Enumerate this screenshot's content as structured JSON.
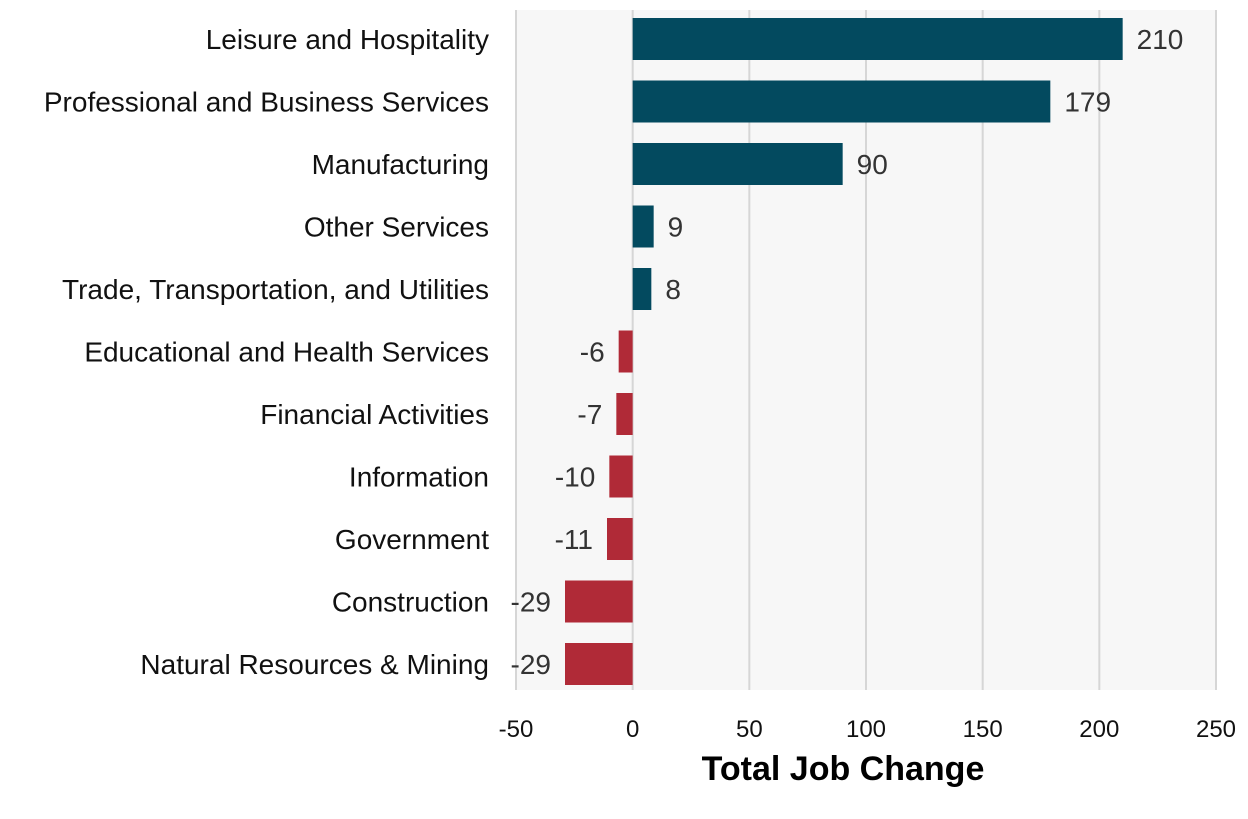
{
  "chart_data": {
    "type": "bar",
    "orientation": "horizontal",
    "categories": [
      "Leisure and Hospitality",
      "Professional and Business Services",
      "Manufacturing",
      "Other Services",
      "Trade, Transportation, and Utilities",
      "Educational and Health Services",
      "Financial Activities",
      "Information",
      "Government",
      "Construction",
      "Natural Resources & Mining"
    ],
    "values": [
      210,
      179,
      90,
      9,
      8,
      -6,
      -7,
      -10,
      -11,
      -29,
      -29
    ],
    "data_labels": [
      "210",
      "179",
      "90",
      "9",
      "8",
      "-6",
      "-7",
      "-10",
      "-11",
      "-29",
      "-29"
    ],
    "title": "",
    "xlabel": "Total Job Change",
    "ylabel": "",
    "xlim": [
      -50,
      250
    ],
    "xticks": [
      -50,
      0,
      50,
      100,
      150,
      200,
      250
    ],
    "xtick_labels": [
      "-50",
      "0",
      "50",
      "100",
      "150",
      "200",
      "250"
    ],
    "grid": "vertical",
    "legend": "none",
    "colors": {
      "positive": "#034a5f",
      "negative": "#b02a37",
      "plot_background": "#f7f7f7",
      "gridline": "#d6d6d6"
    }
  }
}
